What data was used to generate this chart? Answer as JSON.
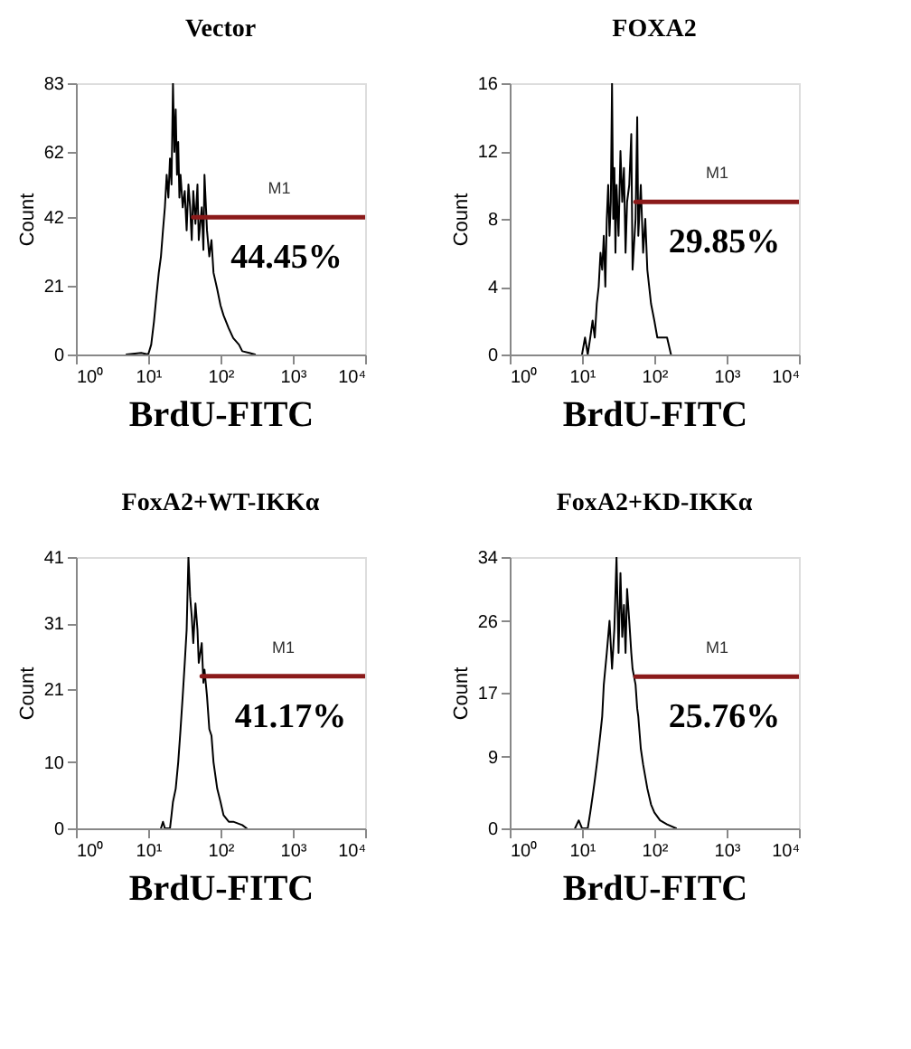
{
  "chart_data": [
    {
      "type": "line",
      "title": "Vector",
      "xlabel": "BrdU-FITC",
      "ylabel": "Count",
      "log": "x",
      "grid": false,
      "xlim": [
        1,
        10000
      ],
      "xticks": [
        {
          "value": 1,
          "label": "10⁰"
        },
        {
          "value": 10,
          "label": "10¹"
        },
        {
          "value": 100,
          "label": "10²"
        },
        {
          "value": 1000,
          "label": "10³"
        },
        {
          "value": 10000,
          "label": "10⁴"
        }
      ],
      "ylim": [
        0,
        83
      ],
      "yticks": [
        0,
        21,
        42,
        62,
        83
      ],
      "series": [
        {
          "color": "#000000",
          "x": [
            5,
            8,
            10,
            11,
            12,
            13,
            14,
            15,
            16,
            17,
            18,
            19,
            20,
            21,
            22,
            23,
            24,
            25,
            26,
            27,
            28,
            30,
            32,
            34,
            36,
            38,
            40,
            42,
            45,
            48,
            50,
            55,
            58,
            60,
            65,
            70,
            75,
            80,
            90,
            100,
            110,
            130,
            150,
            180,
            200,
            250,
            300
          ],
          "values": [
            0,
            0.5,
            0,
            3,
            10,
            18,
            25,
            30,
            38,
            45,
            55,
            48,
            60,
            52,
            83,
            62,
            75,
            55,
            65,
            48,
            55,
            45,
            50,
            38,
            52,
            45,
            35,
            50,
            40,
            52,
            35,
            45,
            32,
            55,
            38,
            30,
            35,
            25,
            20,
            15,
            12,
            8,
            5,
            3,
            1,
            0.5,
            0
          ]
        },
        {
          "color": "#8b1a1a",
          "x": [
            42,
            10000
          ],
          "values": [
            42,
            42
          ]
        }
      ],
      "annotations": [
        "M1",
        "44.45%"
      ]
    },
    {
      "type": "line",
      "title": "FOXA2",
      "xlabel": "BrdU-FITC",
      "ylabel": "Count",
      "log": "x",
      "grid": false,
      "xlim": [
        1,
        10000
      ],
      "xticks": [
        {
          "value": 1,
          "label": "10⁰"
        },
        {
          "value": 10,
          "label": "10¹"
        },
        {
          "value": 100,
          "label": "10²"
        },
        {
          "value": 1000,
          "label": "10³"
        },
        {
          "value": 10000,
          "label": "10⁴"
        }
      ],
      "ylim": [
        0,
        16
      ],
      "yticks": [
        0,
        4,
        8,
        12,
        16
      ],
      "series": [
        {
          "color": "#000000",
          "x": [
            10,
            11,
            12,
            13,
            14,
            15,
            16,
            17,
            18,
            19,
            20,
            21,
            22,
            23,
            24,
            25,
            26,
            27,
            28,
            29,
            30,
            32,
            34,
            36,
            38,
            40,
            42,
            45,
            48,
            50,
            55,
            58,
            60,
            65,
            70,
            75,
            80,
            90,
            100,
            110,
            130,
            150,
            170
          ],
          "values": [
            0,
            1,
            0,
            1,
            2,
            1,
            3,
            4,
            6,
            5,
            7,
            4,
            8,
            10,
            7,
            9,
            16,
            8,
            11,
            6,
            10,
            7,
            12,
            9,
            11,
            6,
            9,
            10,
            13,
            5,
            8,
            14,
            7,
            10,
            6,
            8,
            5,
            3,
            2,
            1,
            1,
            1,
            0
          ]
        },
        {
          "color": "#8b1a1a",
          "x": [
            55,
            10000
          ],
          "values": [
            9,
            9
          ]
        }
      ],
      "annotations": [
        "M1",
        "29.85%"
      ]
    },
    {
      "type": "line",
      "title": "FoxA2+WT-IKKα",
      "xlabel": "BrdU-FITC",
      "ylabel": "Count",
      "log": "x",
      "grid": false,
      "xlim": [
        1,
        10000
      ],
      "xticks": [
        {
          "value": 1,
          "label": "10⁰"
        },
        {
          "value": 10,
          "label": "10¹"
        },
        {
          "value": 100,
          "label": "10²"
        },
        {
          "value": 1000,
          "label": "10³"
        },
        {
          "value": 10000,
          "label": "10⁴"
        }
      ],
      "ylim": [
        0,
        41
      ],
      "yticks": [
        0,
        10,
        21,
        31,
        41
      ],
      "series": [
        {
          "color": "#000000",
          "x": [
            15,
            16,
            17,
            20,
            21,
            22,
            24,
            26,
            28,
            30,
            32,
            34,
            36,
            38,
            40,
            42,
            45,
            48,
            50,
            55,
            58,
            60,
            65,
            70,
            75,
            80,
            90,
            100,
            110,
            130,
            150,
            200,
            230
          ],
          "values": [
            0,
            1,
            0,
            0,
            2,
            4,
            6,
            10,
            15,
            20,
            25,
            30,
            41,
            35,
            32,
            28,
            34,
            30,
            25,
            28,
            22,
            24,
            20,
            15,
            14,
            10,
            6,
            4,
            2,
            1,
            1,
            0.5,
            0
          ]
        },
        {
          "color": "#8b1a1a",
          "x": [
            55,
            10000
          ],
          "values": [
            23,
            23
          ]
        }
      ],
      "annotations": [
        "M1",
        "41.17%"
      ]
    },
    {
      "type": "line",
      "title": "FoxA2+KD-IKKα",
      "xlabel": "BrdU-FITC",
      "ylabel": "Count",
      "log": "x",
      "grid": false,
      "xlim": [
        1,
        10000
      ],
      "xticks": [
        {
          "value": 1,
          "label": "10⁰"
        },
        {
          "value": 10,
          "label": "10¹"
        },
        {
          "value": 100,
          "label": "10²"
        },
        {
          "value": 1000,
          "label": "10³"
        },
        {
          "value": 10000,
          "label": "10⁴"
        }
      ],
      "ylim": [
        0,
        34
      ],
      "yticks": [
        0,
        9,
        17,
        26,
        34
      ],
      "series": [
        {
          "color": "#000000",
          "x": [
            8,
            9,
            10,
            12,
            13,
            14,
            15,
            16,
            17,
            18,
            19,
            20,
            22,
            24,
            26,
            28,
            30,
            32,
            34,
            36,
            38,
            40,
            42,
            45,
            48,
            50,
            55,
            58,
            60,
            65,
            70,
            80,
            90,
            100,
            120,
            150,
            200
          ],
          "values": [
            0,
            1,
            0,
            0,
            2,
            4,
            6,
            8,
            10,
            12,
            14,
            18,
            22,
            26,
            20,
            25,
            34,
            22,
            32,
            24,
            28,
            22,
            30,
            26,
            22,
            20,
            18,
            15,
            14,
            10,
            8,
            5,
            3,
            2,
            1,
            0.5,
            0
          ]
        },
        {
          "color": "#8b1a1a",
          "x": [
            55,
            10000
          ],
          "values": [
            19,
            19
          ]
        }
      ],
      "annotations": [
        "M1",
        "25.76%"
      ]
    }
  ]
}
